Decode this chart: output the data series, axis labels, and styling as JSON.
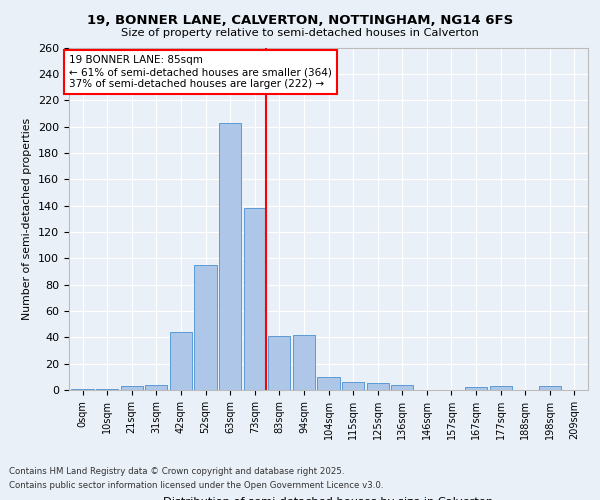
{
  "title1": "19, BONNER LANE, CALVERTON, NOTTINGHAM, NG14 6FS",
  "title2": "Size of property relative to semi-detached houses in Calverton",
  "xlabel": "Distribution of semi-detached houses by size in Calverton",
  "ylabel": "Number of semi-detached properties",
  "categories": [
    "0sqm",
    "10sqm",
    "21sqm",
    "31sqm",
    "42sqm",
    "52sqm",
    "63sqm",
    "73sqm",
    "83sqm",
    "94sqm",
    "104sqm",
    "115sqm",
    "125sqm",
    "136sqm",
    "146sqm",
    "157sqm",
    "167sqm",
    "177sqm",
    "188sqm",
    "198sqm",
    "209sqm"
  ],
  "values": [
    1,
    1,
    3,
    4,
    44,
    95,
    203,
    138,
    41,
    42,
    10,
    6,
    5,
    4,
    0,
    0,
    2,
    3,
    0,
    3,
    0
  ],
  "bar_color": "#aec6e8",
  "bar_edge_color": "#5b9bd5",
  "annotation_line1": "19 BONNER LANE: 85sqm",
  "annotation_line2": "← 61% of semi-detached houses are smaller (364)",
  "annotation_line3": "37% of semi-detached houses are larger (222) →",
  "ylim": [
    0,
    260
  ],
  "yticks": [
    0,
    20,
    40,
    60,
    80,
    100,
    120,
    140,
    160,
    180,
    200,
    220,
    240,
    260
  ],
  "footnote1": "Contains HM Land Registry data © Crown copyright and database right 2025.",
  "footnote2": "Contains public sector information licensed under the Open Government Licence v3.0.",
  "bg_color": "#eaf0f8",
  "plot_bg_color": "#eaf0f8",
  "grid_color": "#ffffff",
  "spine_color": "#bbbbbb"
}
